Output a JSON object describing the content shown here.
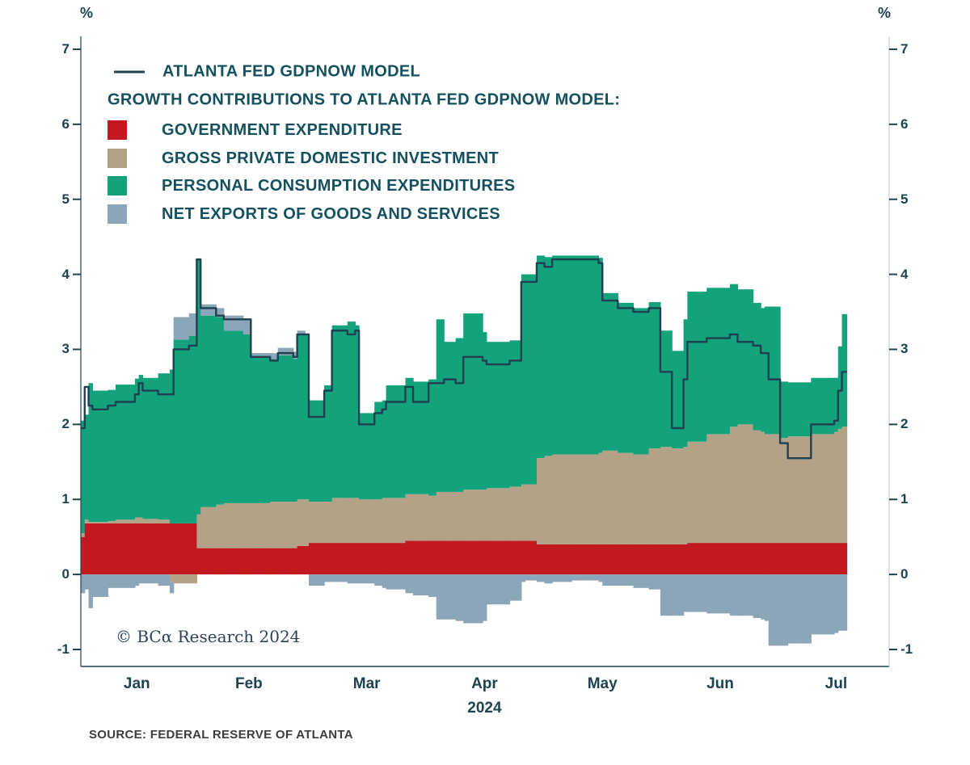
{
  "legend": {
    "contrib_heading": "GROWTH CONTRIBUTIONS TO ATLANTA FED GDPNOW MODEL:"
  },
  "copyright": "© BCα Research 2024",
  "source": "SOURCE: FEDERAL RESERVE OF ATLANTA",
  "chart_data": {
    "type": "area",
    "stacked": true,
    "title": "",
    "ylabel_left": "%",
    "ylabel_right": "%",
    "ylim": [
      -1,
      7
    ],
    "yticks": [
      7,
      6,
      5,
      4,
      3,
      2,
      1,
      0,
      -1
    ],
    "months": [
      "Jan",
      "Feb",
      "Mar",
      "Apr",
      "May",
      "Jun",
      "Jul"
    ],
    "year_label": "2024",
    "legend_position": "top-left",
    "grid": false,
    "dates": [
      "01-02",
      "01-03",
      "01-04",
      "01-05",
      "01-09",
      "01-11",
      "01-16",
      "01-17",
      "01-18",
      "01-22",
      "01-25",
      "01-26",
      "01-30",
      "02-01",
      "02-02",
      "02-06",
      "02-08",
      "02-13",
      "02-15",
      "02-20",
      "02-22",
      "02-26",
      "02-27",
      "02-29",
      "03-01",
      "03-05",
      "03-07",
      "03-11",
      "03-13",
      "03-14",
      "03-18",
      "03-20",
      "03-21",
      "03-26",
      "03-28",
      "04-01",
      "04-03",
      "04-05",
      "04-08",
      "04-10",
      "04-15",
      "04-16",
      "04-22",
      "04-25",
      "04-26",
      "04-29",
      "05-01",
      "05-03",
      "05-08",
      "05-15",
      "05-16",
      "05-20",
      "05-24",
      "05-28",
      "05-31",
      "06-03",
      "06-06",
      "06-07",
      "06-12",
      "06-18",
      "06-20",
      "06-24",
      "06-26",
      "06-27",
      "06-28",
      "07-01",
      "07-03",
      "07-09",
      "07-15",
      "07-16",
      "07-17"
    ],
    "line": {
      "name": "ATLANTA FED GDPNOW MODEL",
      "color": "#20404f",
      "values": [
        1.95,
        2.5,
        2.25,
        2.2,
        2.25,
        2.3,
        2.4,
        2.55,
        2.45,
        2.4,
        2.4,
        3.0,
        3.05,
        4.2,
        3.55,
        3.45,
        3.4,
        3.4,
        2.9,
        2.85,
        2.95,
        2.9,
        3.2,
        3.2,
        2.1,
        2.45,
        3.25,
        3.2,
        3.25,
        2.0,
        2.15,
        2.2,
        2.3,
        2.5,
        2.3,
        2.55,
        2.55,
        2.6,
        2.55,
        2.9,
        2.85,
        2.8,
        2.85,
        3.9,
        3.9,
        4.15,
        4.1,
        4.2,
        4.2,
        4.15,
        3.65,
        3.55,
        3.5,
        3.55,
        2.7,
        1.95,
        2.6,
        3.1,
        3.15,
        3.2,
        3.1,
        3.05,
        2.95,
        2.95,
        2.6,
        1.75,
        1.55,
        2.0,
        2.05,
        2.45,
        2.7
      ]
    },
    "components": [
      {
        "name": "GOVERNMENT EXPENDITURE",
        "color": "#c2181f",
        "values": [
          0.5,
          0.68,
          0.68,
          0.68,
          0.68,
          0.68,
          0.68,
          0.68,
          0.68,
          0.68,
          0.68,
          0.68,
          0.68,
          0.35,
          0.35,
          0.35,
          0.35,
          0.35,
          0.35,
          0.35,
          0.35,
          0.35,
          0.38,
          0.38,
          0.42,
          0.42,
          0.42,
          0.42,
          0.42,
          0.42,
          0.42,
          0.42,
          0.42,
          0.45,
          0.45,
          0.45,
          0.45,
          0.45,
          0.45,
          0.45,
          0.45,
          0.45,
          0.45,
          0.45,
          0.45,
          0.4,
          0.4,
          0.4,
          0.4,
          0.4,
          0.4,
          0.4,
          0.4,
          0.4,
          0.4,
          0.4,
          0.4,
          0.42,
          0.42,
          0.42,
          0.42,
          0.42,
          0.42,
          0.42,
          0.42,
          0.42,
          0.42,
          0.42,
          0.42,
          0.42,
          0.42
        ]
      },
      {
        "name": "GROSS PRIVATE DOMESTIC INVESTMENT",
        "color": "#b4a288",
        "values": [
          0.05,
          0.05,
          0.02,
          0.02,
          0.03,
          0.05,
          0.08,
          0.08,
          0.06,
          0.05,
          -0.1,
          -0.12,
          -0.12,
          0.45,
          0.55,
          0.58,
          0.6,
          0.6,
          0.6,
          0.62,
          0.62,
          0.62,
          0.62,
          0.62,
          0.55,
          0.55,
          0.6,
          0.6,
          0.6,
          0.58,
          0.58,
          0.6,
          0.6,
          0.62,
          0.62,
          0.6,
          0.65,
          0.65,
          0.65,
          0.68,
          0.68,
          0.7,
          0.72,
          0.75,
          0.75,
          1.15,
          1.18,
          1.2,
          1.2,
          1.22,
          1.25,
          1.22,
          1.2,
          1.28,
          1.3,
          1.28,
          1.3,
          1.35,
          1.45,
          1.55,
          1.58,
          1.5,
          1.48,
          1.45,
          1.45,
          1.4,
          1.42,
          1.45,
          1.48,
          1.52,
          1.55
        ]
      },
      {
        "name": "PERSONAL CONSUMPTION EXPENDITURES",
        "color": "#12a37c",
        "values": [
          1.5,
          1.4,
          1.85,
          1.75,
          1.75,
          1.8,
          1.85,
          1.9,
          1.88,
          1.95,
          2.05,
          2.45,
          2.5,
          3.4,
          2.55,
          2.5,
          2.3,
          2.25,
          1.95,
          1.9,
          1.95,
          1.9,
          2.2,
          2.2,
          1.35,
          1.55,
          2.3,
          2.35,
          2.3,
          1.15,
          1.3,
          1.3,
          1.5,
          1.55,
          1.5,
          1.55,
          2.3,
          2.0,
          2.05,
          2.35,
          2.1,
          1.95,
          1.95,
          2.8,
          2.8,
          2.7,
          2.65,
          2.65,
          2.65,
          2.6,
          2.1,
          2.0,
          1.95,
          1.95,
          1.55,
          1.3,
          1.7,
          2.0,
          1.95,
          1.9,
          1.8,
          1.7,
          1.65,
          1.7,
          1.7,
          0.75,
          0.72,
          0.75,
          0.72,
          1.1,
          1.5
        ]
      },
      {
        "name": "NET EXPORTS OF GOODS AND SERVICES",
        "color": "#8ca6b9",
        "values": [
          -0.25,
          -0.2,
          -0.45,
          -0.3,
          -0.18,
          -0.18,
          -0.15,
          -0.12,
          -0.12,
          -0.15,
          -0.15,
          0.3,
          0.3,
          0.0,
          0.15,
          0.12,
          0.2,
          0.2,
          0.05,
          0.08,
          0.1,
          0.1,
          0.05,
          0.0,
          -0.15,
          -0.1,
          -0.1,
          -0.12,
          -0.12,
          -0.12,
          -0.15,
          -0.18,
          -0.2,
          -0.25,
          -0.28,
          -0.3,
          -0.6,
          -0.6,
          -0.62,
          -0.65,
          -0.62,
          -0.4,
          -0.35,
          -0.1,
          -0.08,
          -0.1,
          -0.12,
          -0.1,
          -0.08,
          -0.1,
          -0.15,
          -0.15,
          -0.18,
          -0.2,
          -0.55,
          -0.55,
          -0.5,
          -0.5,
          -0.52,
          -0.55,
          -0.55,
          -0.58,
          -0.6,
          -0.62,
          -0.95,
          -0.95,
          -0.92,
          -0.8,
          -0.78,
          -0.75,
          -0.75
        ]
      }
    ]
  }
}
